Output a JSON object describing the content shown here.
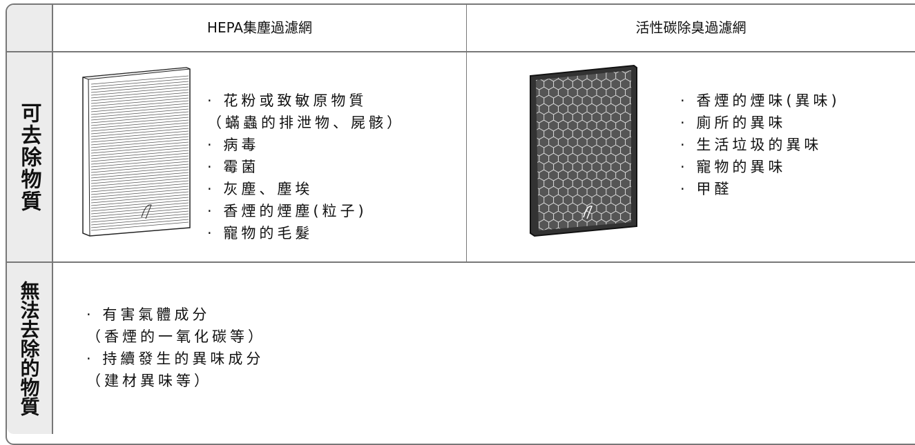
{
  "table": {
    "header": {
      "columns": [
        "HEPA集塵過濾網",
        "活性碳除臭過濾網"
      ]
    },
    "rows": [
      {
        "label": "可去除物質",
        "cells": [
          [
            "· 花粉或致敏原物質",
            "（蟎蟲的排泄物、屍骸）",
            "· 病毒",
            "· 霉菌",
            "· 灰塵、塵埃",
            "· 香煙的煙塵(粒子)",
            "· 寵物的毛髮"
          ],
          [
            "· 香煙的煙味(異味)",
            "· 廁所的異味",
            "· 生活垃圾的異味",
            "· 寵物的異味",
            "· 甲醛"
          ]
        ]
      },
      {
        "label": "無法去除的物質",
        "cells": [
          [
            "· 有害氣體成分",
            "（香煙的一氧化碳等）",
            "· 持續發生的異味成分",
            "（建材異味等）"
          ]
        ]
      }
    ]
  }
}
